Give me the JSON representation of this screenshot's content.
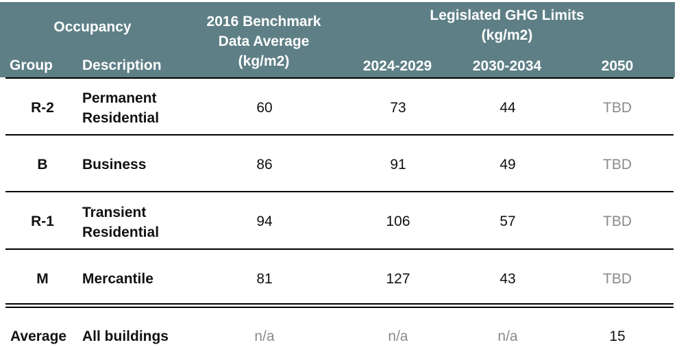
{
  "header": {
    "occupancy": "Occupancy",
    "group": "Group",
    "description": "Description",
    "benchmark_l1": "2016 Benchmark",
    "benchmark_l2": "Data Average",
    "benchmark_l3": "(kg/m2)",
    "limits_l1": "Legislated GHG Limits",
    "limits_l2": "(kg/m2)",
    "p1": "2024-2029",
    "p2": "2030-2034",
    "p3": "2050"
  },
  "rows": [
    {
      "group": "R-2",
      "desc1": "Permanent",
      "desc2": "Residential",
      "benchmark": "60",
      "p1": "73",
      "p2": "44",
      "p3": "TBD"
    },
    {
      "group": "B",
      "desc1": "Business",
      "desc2": "",
      "benchmark": "86",
      "p1": "91",
      "p2": "49",
      "p3": "TBD"
    },
    {
      "group": "R-1",
      "desc1": "Transient",
      "desc2": "Residential",
      "benchmark": "94",
      "p1": "106",
      "p2": "57",
      "p3": "TBD"
    },
    {
      "group": "M",
      "desc1": "Mercantile",
      "desc2": "",
      "benchmark": "81",
      "p1": "127",
      "p2": "43",
      "p3": "TBD"
    }
  ],
  "average": {
    "group": "Average",
    "desc": "All buildings",
    "benchmark": "n/a",
    "p1": "n/a",
    "p2": "n/a",
    "p3": "15"
  },
  "colors": {
    "header_bg": "#5e7f86",
    "muted_text": "#8a8a8a"
  }
}
